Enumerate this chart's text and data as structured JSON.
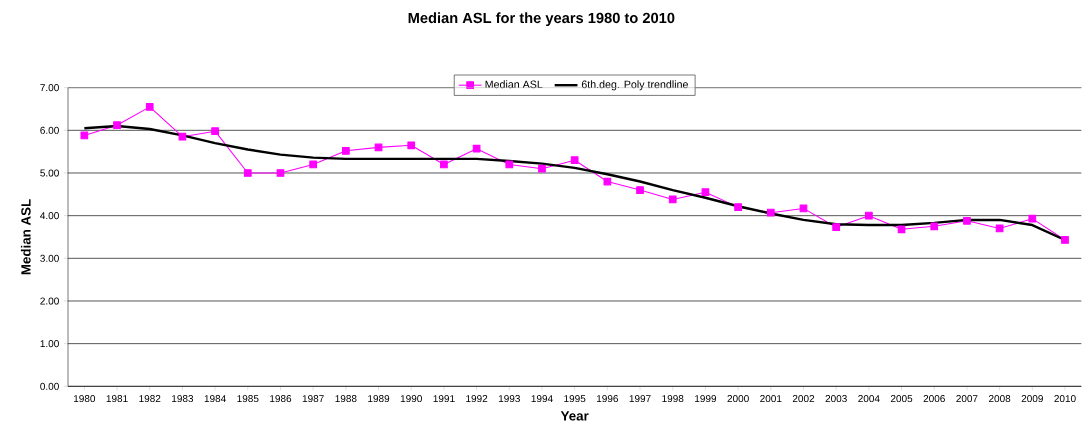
{
  "chart_data": {
    "type": "line",
    "title": "Median ASL for the years 1980 to 2010",
    "xlabel": "Year",
    "ylabel": "Median ASL",
    "categories": [
      "1980",
      "1981",
      "1982",
      "1983",
      "1984",
      "1985",
      "1986",
      "1987",
      "1988",
      "1989",
      "1990",
      "1991",
      "1992",
      "1993",
      "1994",
      "1995",
      "1996",
      "1997",
      "1998",
      "1999",
      "2000",
      "2001",
      "2002",
      "2003",
      "2004",
      "2005",
      "2006",
      "2007",
      "2008",
      "2009",
      "2010"
    ],
    "series": [
      {
        "name": "Median ASL",
        "color": "#ff00ff",
        "marker": "square",
        "values": [
          5.88,
          6.12,
          6.55,
          5.85,
          5.98,
          5.0,
          5.0,
          5.2,
          5.52,
          5.6,
          5.65,
          5.2,
          5.57,
          5.2,
          5.1,
          5.3,
          4.8,
          4.6,
          4.38,
          4.55,
          4.2,
          4.07,
          4.17,
          3.73,
          4.0,
          3.68,
          3.75,
          3.88,
          3.7,
          3.93,
          3.43
        ]
      },
      {
        "name": "6th.deg. Poly trendline",
        "color": "#000000",
        "marker": "none",
        "values": [
          6.05,
          6.1,
          6.03,
          5.88,
          5.7,
          5.55,
          5.43,
          5.36,
          5.33,
          5.33,
          5.33,
          5.33,
          5.33,
          5.28,
          5.22,
          5.12,
          4.97,
          4.8,
          4.6,
          4.42,
          4.22,
          4.05,
          3.9,
          3.8,
          3.78,
          3.78,
          3.83,
          3.9,
          3.9,
          3.78,
          3.43
        ]
      }
    ],
    "ylim": [
      0,
      7
    ],
    "yticks": [
      {
        "value": 0,
        "label": "0.00"
      },
      {
        "value": 1,
        "label": "1.00"
      },
      {
        "value": 2,
        "label": "2.00"
      },
      {
        "value": 3,
        "label": "3.00"
      },
      {
        "value": 4,
        "label": "4.00"
      },
      {
        "value": 5,
        "label": "5.00"
      },
      {
        "value": 6,
        "label": "6.00"
      },
      {
        "value": 7,
        "label": "7.00"
      }
    ],
    "grid": "y",
    "legend": "top",
    "line_style": "solid"
  }
}
